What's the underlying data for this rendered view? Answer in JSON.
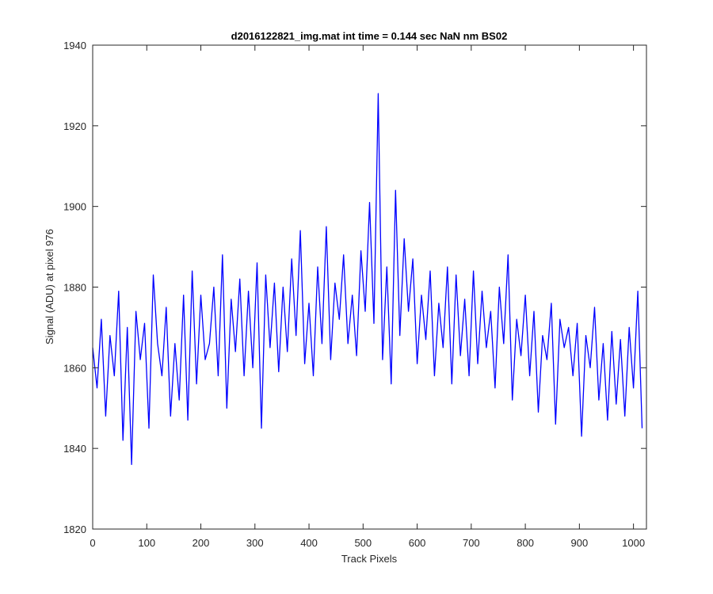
{
  "chart_data": {
    "type": "line",
    "title": "d2016122821_img.mat int time = 0.144 sec  NaN nm BS02",
    "xlabel": "Track Pixels",
    "ylabel": "Signal (ADU) at pixel 976",
    "xlim": [
      0,
      1024
    ],
    "ylim": [
      1820,
      1940
    ],
    "xticks": [
      0,
      100,
      200,
      300,
      400,
      500,
      600,
      700,
      800,
      900,
      1000
    ],
    "yticks": [
      1820,
      1840,
      1860,
      1880,
      1900,
      1920,
      1940
    ],
    "grid": false,
    "line_color": "#0000ff",
    "series": [
      {
        "x_start": 0,
        "x_step": 8,
        "values": [
          1865,
          1855,
          1872,
          1848,
          1868,
          1858,
          1879,
          1842,
          1870,
          1836,
          1874,
          1862,
          1871,
          1845,
          1883,
          1866,
          1858,
          1875,
          1848,
          1866,
          1852,
          1878,
          1847,
          1884,
          1856,
          1878,
          1862,
          1866,
          1880,
          1858,
          1888,
          1850,
          1877,
          1864,
          1882,
          1858,
          1879,
          1860,
          1886,
          1845,
          1883,
          1865,
          1881,
          1859,
          1880,
          1864,
          1887,
          1868,
          1894,
          1861,
          1876,
          1858,
          1885,
          1866,
          1895,
          1862,
          1881,
          1872,
          1888,
          1866,
          1878,
          1863,
          1889,
          1874,
          1901,
          1871,
          1928,
          1862,
          1885,
          1856,
          1904,
          1868,
          1892,
          1874,
          1887,
          1861,
          1878,
          1867,
          1884,
          1858,
          1876,
          1865,
          1885,
          1856,
          1883,
          1863,
          1877,
          1858,
          1884,
          1861,
          1879,
          1865,
          1874,
          1855,
          1880,
          1866,
          1888,
          1852,
          1872,
          1863,
          1878,
          1858,
          1874,
          1849,
          1868,
          1862,
          1876,
          1846,
          1872,
          1865,
          1870,
          1858,
          1871,
          1843,
          1868,
          1860,
          1875,
          1852,
          1866,
          1847,
          1869,
          1851,
          1867,
          1848,
          1870,
          1855,
          1879,
          1845
        ]
      }
    ]
  }
}
